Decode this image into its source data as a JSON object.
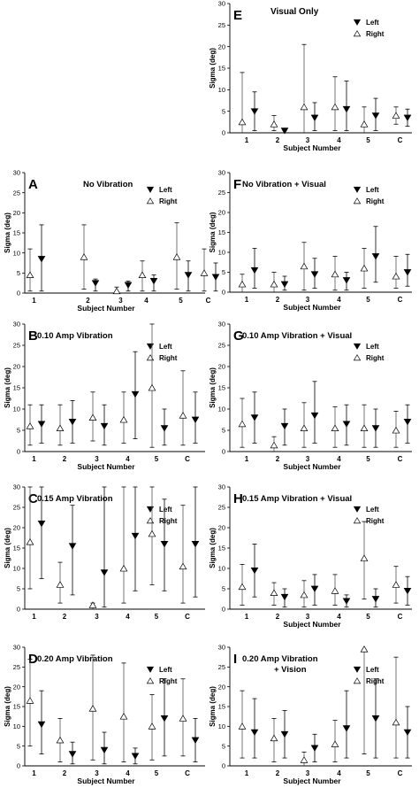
{
  "chart_data": [
    {
      "panel": "A",
      "title": "No Vibration",
      "type": "scatter",
      "categories": [
        "1",
        "2",
        "3",
        "4",
        "5",
        "C"
      ],
      "ylabel": "Sigma (deg)",
      "xlabel": "Subject Number",
      "ylim": [
        0,
        30
      ],
      "yticks": [
        0,
        5,
        10,
        15,
        20,
        25,
        30
      ],
      "legend": [
        "Left",
        "Right"
      ],
      "legend_position": "top-right",
      "series": [
        {
          "name": "Left",
          "marker": "filled-down-triangle",
          "values": [
            8.5,
            2.5,
            2.0,
            3.0,
            4.5,
            4.0
          ],
          "upper": [
            17.0,
            3.5,
            3.0,
            4.5,
            8.0,
            7.5
          ],
          "lower": [
            0.5,
            0.5,
            0.5,
            0.5,
            0.5,
            0.5
          ]
        },
        {
          "name": "Right",
          "marker": "open-up-triangle",
          "values": [
            4.5,
            9.0,
            0.5,
            4.5,
            9.0,
            5.0
          ],
          "upper": [
            11.0,
            17.0,
            1.5,
            8.0,
            17.5,
            11.0
          ],
          "lower": [
            0.5,
            1.0,
            0.0,
            0.5,
            1.0,
            0.5
          ]
        }
      ]
    },
    {
      "panel": "B",
      "title": "0.10 Amp Vibration",
      "type": "scatter",
      "categories": [
        "1",
        "2",
        "3",
        "4",
        "5",
        "C"
      ],
      "ylabel": "Sigma (deg)",
      "xlabel": "Subject Number",
      "ylim": [
        0,
        30
      ],
      "yticks": [
        0,
        5,
        10,
        15,
        20,
        25,
        30
      ],
      "legend": [
        "Left",
        "Right"
      ],
      "legend_position": "top-right",
      "series": [
        {
          "name": "Left",
          "marker": "filled-down-triangle",
          "values": [
            6.5,
            7.0,
            6.0,
            13.5,
            5.5,
            7.5
          ],
          "upper": [
            11.0,
            12.0,
            11.0,
            23.5,
            10.0,
            14.0
          ],
          "lower": [
            2.0,
            2.0,
            1.5,
            3.0,
            1.5,
            2.0
          ]
        },
        {
          "name": "Right",
          "marker": "open-up-triangle",
          "values": [
            6.0,
            5.5,
            8.0,
            7.5,
            15.0,
            8.5
          ],
          "upper": [
            11.0,
            11.0,
            14.0,
            14.0,
            30.0,
            19.0
          ],
          "lower": [
            1.5,
            1.5,
            2.5,
            2.0,
            1.0,
            1.5
          ]
        }
      ]
    },
    {
      "panel": "C",
      "title": "0.15 Amp Vibration",
      "type": "scatter",
      "categories": [
        "1",
        "2",
        "3",
        "4",
        "5",
        "C"
      ],
      "ylabel": "Sigma (deg)",
      "xlabel": "",
      "ylim": [
        0,
        30
      ],
      "yticks": [
        0,
        5,
        10,
        15,
        20,
        25,
        30
      ],
      "legend": [
        "Left",
        "Right"
      ],
      "legend_position": "top-right",
      "series": [
        {
          "name": "Left",
          "marker": "filled-down-triangle",
          "values": [
            21.0,
            15.5,
            9.0,
            18.0,
            16.0,
            16.0
          ],
          "upper": [
            30.0,
            25.5,
            30.0,
            30.0,
            27.0,
            30.0
          ],
          "lower": [
            7.5,
            3.5,
            0.5,
            4.5,
            4.5,
            3.0
          ]
        },
        {
          "name": "Right",
          "marker": "open-up-triangle",
          "values": [
            16.5,
            6.0,
            1.0,
            10.0,
            18.5,
            10.5
          ],
          "upper": [
            30.0,
            11.5,
            1.5,
            30.0,
            30.0,
            25.5
          ],
          "lower": [
            5.0,
            1.5,
            0.0,
            1.5,
            6.0,
            1.5
          ]
        }
      ]
    },
    {
      "panel": "D",
      "title": "0.20 Amp Vibration",
      "type": "scatter",
      "categories": [
        "1",
        "2",
        "3",
        "4",
        "5",
        "C"
      ],
      "ylabel": "Sigma (deg)",
      "xlabel": "Subject Number",
      "ylim": [
        0,
        30
      ],
      "yticks": [
        0,
        5,
        10,
        15,
        20,
        25,
        30
      ],
      "legend": [
        "Left",
        "Right"
      ],
      "legend_position": "top-right",
      "series": [
        {
          "name": "Left",
          "marker": "filled-down-triangle",
          "values": [
            10.5,
            3.0,
            4.0,
            2.5,
            12.0,
            6.5
          ],
          "upper": [
            19.0,
            6.0,
            8.5,
            4.5,
            22.0,
            12.0
          ],
          "lower": [
            3.0,
            0.5,
            0.5,
            0.5,
            2.5,
            1.0
          ]
        },
        {
          "name": "Right",
          "marker": "open-up-triangle",
          "values": [
            16.5,
            6.5,
            14.5,
            12.5,
            10.0,
            12.0
          ],
          "upper": [
            27.0,
            12.0,
            28.0,
            26.0,
            18.0,
            22.0
          ],
          "lower": [
            5.0,
            1.0,
            1.5,
            1.0,
            1.5,
            2.5
          ]
        }
      ]
    },
    {
      "panel": "E",
      "title": "Visual Only",
      "type": "scatter",
      "categories": [
        "1",
        "2",
        "3",
        "4",
        "5",
        "C"
      ],
      "ylabel": "Sigma (deg)",
      "xlabel": "Subject Number",
      "ylim": [
        0,
        30
      ],
      "yticks": [
        0,
        5,
        10,
        15,
        20,
        25,
        30
      ],
      "legend": [
        "Left",
        "Right"
      ],
      "legend_position": "top-right",
      "series": [
        {
          "name": "Left",
          "marker": "filled-down-triangle",
          "values": [
            5.0,
            0.5,
            3.5,
            5.5,
            4.0,
            3.5
          ],
          "upper": [
            9.5,
            0.5,
            7.0,
            12.0,
            8.0,
            5.5
          ],
          "lower": [
            0.5,
            0.0,
            0.5,
            0.5,
            0.5,
            1.5
          ]
        },
        {
          "name": "Right",
          "marker": "open-up-triangle",
          "values": [
            2.5,
            2.0,
            6.0,
            6.0,
            2.0,
            4.0
          ],
          "upper": [
            14.0,
            4.0,
            20.5,
            13.0,
            6.0,
            6.0
          ],
          "lower": [
            0.0,
            0.5,
            0.0,
            0.5,
            0.0,
            2.0
          ]
        }
      ]
    },
    {
      "panel": "F",
      "title": "No Vibration + Visual",
      "type": "scatter",
      "categories": [
        "1",
        "2",
        "3",
        "4",
        "5",
        "C"
      ],
      "ylabel": "Sigma (deg)",
      "xlabel": "Subject Number",
      "ylim": [
        0,
        30
      ],
      "yticks": [
        0,
        5,
        10,
        15,
        20,
        25,
        30
      ],
      "legend": [
        "Left",
        "Right"
      ],
      "legend_position": "top-right",
      "series": [
        {
          "name": "Left",
          "marker": "filled-down-triangle",
          "values": [
            5.5,
            2.0,
            4.5,
            3.0,
            9.0,
            5.0
          ],
          "upper": [
            11.0,
            4.0,
            8.5,
            5.0,
            16.5,
            9.5
          ],
          "lower": [
            1.0,
            0.5,
            1.0,
            0.5,
            2.5,
            1.5
          ]
        },
        {
          "name": "Right",
          "marker": "open-up-triangle",
          "values": [
            2.0,
            2.0,
            6.5,
            4.5,
            6.0,
            4.0
          ],
          "upper": [
            4.5,
            5.0,
            12.5,
            9.0,
            11.0,
            9.0
          ],
          "lower": [
            0.0,
            0.0,
            0.5,
            0.5,
            1.0,
            1.0
          ]
        }
      ]
    },
    {
      "panel": "G",
      "title": "0.10 Amp Vibration + Visual",
      "type": "scatter",
      "categories": [
        "1",
        "2",
        "3",
        "4",
        "5",
        "C"
      ],
      "ylabel": "Sigma (deg)",
      "xlabel": "Subject Number",
      "ylim": [
        0,
        30
      ],
      "yticks": [
        0,
        5,
        10,
        15,
        20,
        25,
        30
      ],
      "legend": [
        "Left",
        "Right"
      ],
      "legend_position": "top-right",
      "series": [
        {
          "name": "Left",
          "marker": "filled-down-triangle",
          "values": [
            8.0,
            6.0,
            8.5,
            6.5,
            5.5,
            7.0
          ],
          "upper": [
            14.0,
            10.0,
            16.5,
            11.0,
            10.0,
            11.0
          ],
          "lower": [
            2.0,
            1.5,
            2.0,
            1.5,
            1.0,
            2.0
          ]
        },
        {
          "name": "Right",
          "marker": "open-up-triangle",
          "values": [
            6.5,
            1.5,
            5.5,
            5.5,
            5.5,
            5.0
          ],
          "upper": [
            12.5,
            3.5,
            11.5,
            10.5,
            11.0,
            9.5
          ],
          "lower": [
            1.0,
            0.0,
            1.0,
            1.0,
            1.0,
            1.0
          ]
        }
      ]
    },
    {
      "panel": "H",
      "title": "0.15 Amp Vibration + Visual",
      "type": "scatter",
      "categories": [
        "1",
        "2",
        "3",
        "4",
        "5",
        "C"
      ],
      "ylabel": "Sigma (deg)",
      "xlabel": "Subject Number",
      "ylim": [
        0,
        30
      ],
      "yticks": [
        0,
        5,
        10,
        15,
        20,
        25,
        30
      ],
      "legend": [
        "Left",
        "Right"
      ],
      "legend_position": "top-right",
      "series": [
        {
          "name": "Left",
          "marker": "filled-down-triangle",
          "values": [
            9.5,
            3.0,
            5.0,
            2.0,
            2.5,
            4.5
          ],
          "upper": [
            16.0,
            5.0,
            8.5,
            3.5,
            5.0,
            8.0
          ],
          "lower": [
            3.0,
            0.5,
            1.0,
            0.5,
            0.5,
            1.0
          ]
        },
        {
          "name": "Right",
          "marker": "open-up-triangle",
          "values": [
            5.5,
            4.0,
            3.5,
            4.5,
            12.5,
            6.0
          ],
          "upper": [
            11.0,
            6.5,
            7.0,
            8.5,
            21.5,
            10.5
          ],
          "lower": [
            1.0,
            1.0,
            0.5,
            1.0,
            2.5,
            1.5
          ]
        }
      ]
    },
    {
      "panel": "I",
      "title": "0.20 Amp Vibration",
      "title_line2": "+ Vision",
      "type": "scatter",
      "categories": [
        "1",
        "2",
        "3",
        "4",
        "5",
        "C"
      ],
      "ylabel": "Sigma (deg)",
      "xlabel": "Subject Number",
      "ylim": [
        0,
        30
      ],
      "yticks": [
        0,
        5,
        10,
        15,
        20,
        25,
        30
      ],
      "legend": [
        "Left",
        "Right"
      ],
      "legend_position": "top-right",
      "series": [
        {
          "name": "Left",
          "marker": "filled-down-triangle",
          "values": [
            8.5,
            8.0,
            4.5,
            9.5,
            12.0,
            8.5
          ],
          "upper": [
            17.0,
            14.0,
            8.0,
            19.0,
            22.0,
            15.0
          ],
          "lower": [
            2.0,
            2.0,
            1.0,
            2.0,
            2.0,
            2.0
          ]
        },
        {
          "name": "Right",
          "marker": "open-up-triangle",
          "values": [
            10.0,
            7.0,
            1.5,
            5.5,
            29.5,
            11.0
          ],
          "upper": [
            19.0,
            12.0,
            3.5,
            11.5,
            29.5,
            27.5
          ],
          "lower": [
            2.0,
            1.0,
            0.0,
            1.0,
            3.0,
            2.0
          ]
        }
      ]
    }
  ]
}
